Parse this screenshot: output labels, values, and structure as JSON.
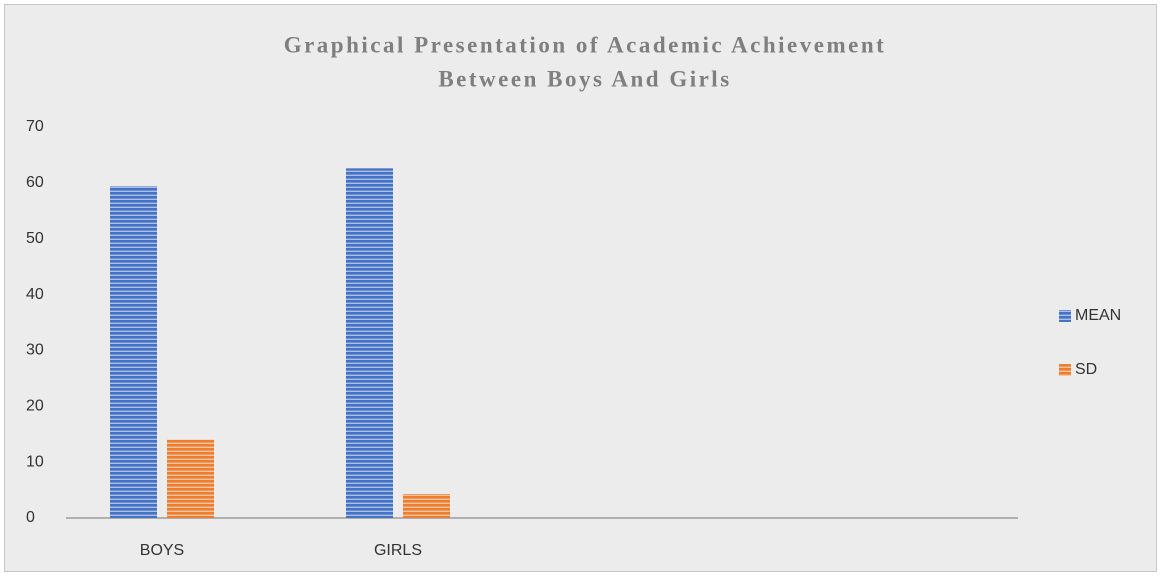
{
  "chart_data": {
    "type": "bar",
    "title": "Graphical Presentation of Academic Achievement",
    "subtitle": "Between Boys And Girls",
    "categories": [
      "BOYS",
      "GIRLS",
      null,
      null
    ],
    "series": [
      {
        "name": "MEAN",
        "color": "#4472c4",
        "values": [
          59.4,
          62.6,
          null,
          null
        ]
      },
      {
        "name": "SD",
        "color": "#ed7d31",
        "values": [
          14.0,
          4.3,
          null,
          null
        ]
      }
    ],
    "ylim": [
      0,
      70
    ],
    "yticks": [
      0,
      10,
      20,
      30,
      40,
      50,
      60,
      70
    ],
    "legend": "right"
  }
}
